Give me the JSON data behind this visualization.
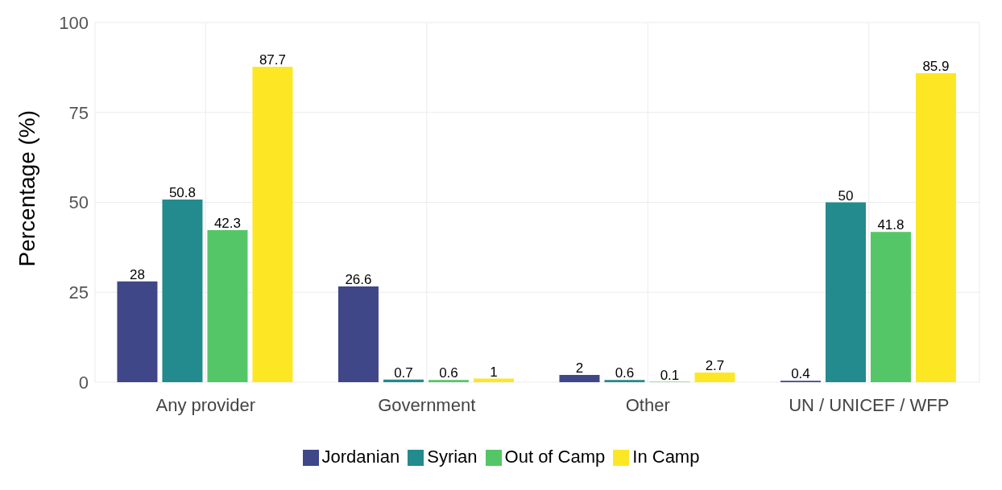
{
  "chart_data": {
    "type": "bar",
    "ylabel": "Percentage (%)",
    "categories": [
      "Any provider",
      "Government",
      "Other",
      "UN / UNICEF / WFP"
    ],
    "series": [
      {
        "name": "Jordanian",
        "color": "#3f4788",
        "values": [
          28,
          26.6,
          2,
          0.4
        ]
      },
      {
        "name": "Syrian",
        "color": "#238a8d",
        "values": [
          50.8,
          0.7,
          0.6,
          50
        ]
      },
      {
        "name": "Out of Camp",
        "color": "#55c667",
        "values": [
          42.3,
          0.6,
          0.1,
          41.8
        ]
      },
      {
        "name": "In Camp",
        "color": "#fde725",
        "values": [
          87.7,
          1,
          2.7,
          85.9
        ]
      }
    ],
    "ylim": [
      0,
      100
    ],
    "yticks": [
      0,
      25,
      50,
      75,
      100
    ],
    "grid": true,
    "legend": "bottom",
    "data_labels": true
  }
}
